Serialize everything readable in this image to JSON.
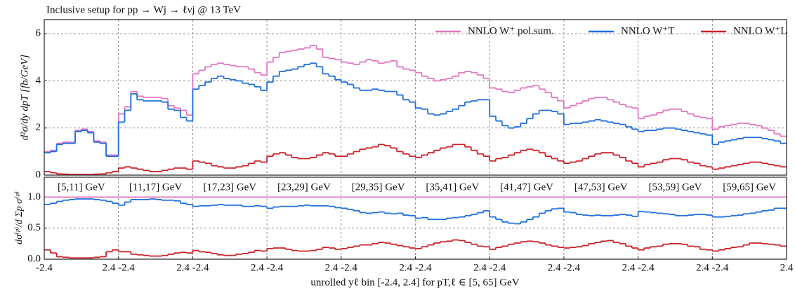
{
  "chart_data": [
    {
      "type": "step",
      "title": "Inclusive setup for pp → Wj → ℓνj @ 13 TeV",
      "ylabel": "d²σ/dy dpT [fb/GeV]",
      "ylim": [
        0,
        6.6
      ],
      "yticks": [
        0,
        2,
        4,
        6
      ],
      "xlim": [
        0,
        10
      ],
      "grid": true,
      "legend": "upper right",
      "series": [
        {
          "name": "NNLO W⁺ pol.sum.",
          "color": "#e377c2",
          "values": [
            1.0,
            1.05,
            1.35,
            1.4,
            1.4,
            1.9,
            1.95,
            1.85,
            1.45,
            1.4,
            0.85,
            0.85,
            2.6,
            2.9,
            3.55,
            3.35,
            3.3,
            3.3,
            3.3,
            3.25,
            2.95,
            2.85,
            2.75,
            2.55,
            4.3,
            4.45,
            4.6,
            4.7,
            4.75,
            4.7,
            4.65,
            4.6,
            4.6,
            4.5,
            4.35,
            4.25,
            4.8,
            5.0,
            5.2,
            5.25,
            5.3,
            5.35,
            5.4,
            5.5,
            5.35,
            5.0,
            4.95,
            4.9,
            4.8,
            4.75,
            4.7,
            4.8,
            4.9,
            4.85,
            4.75,
            4.8,
            4.85,
            4.6,
            4.5,
            4.45,
            4.35,
            4.2,
            4.1,
            4.0,
            4.05,
            4.1,
            4.2,
            4.35,
            4.4,
            4.35,
            4.25,
            4.1,
            3.7,
            3.65,
            3.55,
            3.5,
            3.6,
            3.7,
            3.75,
            3.8,
            3.65,
            3.5,
            3.3,
            3.15,
            2.85,
            2.95,
            3.05,
            3.15,
            3.25,
            3.3,
            3.3,
            3.2,
            3.1,
            3.0,
            2.9,
            2.85,
            2.4,
            2.5,
            2.55,
            2.65,
            2.75,
            2.8,
            2.8,
            2.7,
            2.6,
            2.5,
            2.45,
            2.4,
            1.95,
            2.05,
            2.1,
            2.15,
            2.2,
            2.2,
            2.15,
            2.1,
            2.0,
            1.9,
            1.75,
            1.65
          ]
        },
        {
          "name": "NNLO W⁺T",
          "color": "#1f6fdc",
          "values": [
            0.95,
            1.0,
            1.3,
            1.35,
            1.35,
            1.85,
            1.9,
            1.8,
            1.4,
            1.35,
            0.8,
            0.8,
            2.25,
            2.75,
            3.45,
            3.2,
            3.15,
            3.15,
            3.15,
            3.1,
            2.8,
            2.75,
            2.45,
            2.3,
            3.65,
            3.8,
            3.95,
            4.1,
            4.2,
            4.1,
            4.05,
            4.0,
            3.9,
            3.85,
            3.75,
            3.6,
            3.95,
            4.2,
            4.4,
            4.45,
            4.5,
            4.6,
            4.7,
            4.75,
            4.6,
            4.3,
            4.2,
            4.05,
            3.95,
            3.85,
            3.7,
            3.6,
            3.6,
            3.65,
            3.6,
            3.55,
            3.55,
            3.4,
            3.2,
            3.1,
            2.85,
            2.8,
            2.6,
            2.55,
            2.6,
            2.7,
            2.8,
            2.95,
            3.1,
            3.15,
            3.2,
            3.2,
            2.5,
            2.3,
            2.1,
            2.0,
            2.05,
            2.2,
            2.4,
            2.6,
            2.75,
            2.75,
            2.7,
            2.6,
            2.15,
            2.2,
            2.2,
            2.25,
            2.3,
            2.35,
            2.3,
            2.25,
            2.2,
            2.15,
            2.05,
            1.95,
            1.85,
            1.9,
            1.9,
            1.95,
            2.0,
            2.0,
            1.95,
            1.9,
            1.85,
            1.8,
            1.75,
            1.7,
            1.3,
            1.4,
            1.45,
            1.5,
            1.55,
            1.6,
            1.6,
            1.6,
            1.55,
            1.5,
            1.45,
            1.35
          ]
        },
        {
          "name": "NNLO W⁺L",
          "color": "#cc2229",
          "values": [
            0.15,
            0.1,
            0.05,
            0.04,
            0.03,
            0.03,
            0.03,
            0.03,
            0.04,
            0.05,
            0.1,
            0.15,
            0.3,
            0.35,
            0.3,
            0.25,
            0.2,
            0.15,
            0.15,
            0.2,
            0.25,
            0.3,
            0.3,
            0.25,
            0.6,
            0.55,
            0.5,
            0.4,
            0.35,
            0.3,
            0.3,
            0.35,
            0.4,
            0.5,
            0.6,
            0.55,
            0.8,
            0.9,
            0.95,
            0.85,
            0.75,
            0.7,
            0.7,
            0.75,
            0.85,
            0.95,
            0.9,
            0.8,
            0.8,
            0.9,
            1.0,
            1.1,
            1.15,
            1.2,
            1.3,
            1.25,
            1.15,
            1.0,
            0.9,
            0.8,
            0.75,
            0.85,
            0.95,
            1.05,
            1.15,
            1.2,
            1.3,
            1.3,
            1.2,
            1.05,
            0.9,
            0.8,
            0.6,
            0.7,
            0.75,
            0.85,
            0.95,
            1.05,
            1.1,
            1.05,
            0.95,
            0.8,
            0.7,
            0.6,
            0.5,
            0.55,
            0.6,
            0.7,
            0.8,
            0.9,
            0.95,
            0.95,
            0.85,
            0.75,
            0.6,
            0.5,
            0.35,
            0.45,
            0.5,
            0.55,
            0.65,
            0.7,
            0.7,
            0.65,
            0.55,
            0.5,
            0.4,
            0.35,
            0.25,
            0.3,
            0.35,
            0.4,
            0.45,
            0.5,
            0.55,
            0.55,
            0.5,
            0.45,
            0.4,
            0.35
          ]
        }
      ]
    },
    {
      "type": "step",
      "ylabel": "dσ⁽ᵖ⁾/d Σp σ⁽ᵖ⁾",
      "xlabel": "unrolled yℓ bin [-2.4, 2.4] for pT,ℓ ∈ [5, 65] GeV",
      "ylim": [
        0,
        1.32
      ],
      "yticks": [
        {
          "value": 0,
          "label": "0.0"
        },
        {
          "value": 0.5,
          "label": "0.5"
        },
        {
          "value": 1,
          "label": "1.0"
        }
      ],
      "xlim": [
        0,
        10
      ],
      "xticks": [
        {
          "value": 0,
          "label": "-2.4"
        },
        {
          "value": 1,
          "label": "2.4 -2.4"
        },
        {
          "value": 2,
          "label": "2.4 -2.4"
        },
        {
          "value": 3,
          "label": "2.4 -2.4"
        },
        {
          "value": 4,
          "label": "2.4 -2.4"
        },
        {
          "value": 5,
          "label": "2.4 -2.4"
        },
        {
          "value": 6,
          "label": "2.4 -2.4"
        },
        {
          "value": 7,
          "label": "2.4 -2.4"
        },
        {
          "value": 8,
          "label": "2.4 -2.4"
        },
        {
          "value": 9,
          "label": "2.4 -2.4"
        },
        {
          "value": 10,
          "label": "2.4"
        }
      ],
      "grid": true,
      "annotations": [
        "[5,11] GeV",
        "[11,17] GeV",
        "[17,23] GeV",
        "[23,29] GeV",
        "[29,35] GeV",
        "[35,41] GeV",
        "[41,47] GeV",
        "[47,53] GeV",
        "[53,59] GeV",
        "[59,65] GeV"
      ],
      "series": [
        {
          "color": "#e377c2",
          "values": [
            1,
            1,
            1,
            1,
            1,
            1,
            1,
            1,
            1,
            1,
            1,
            1,
            1,
            1,
            1,
            1,
            1,
            1,
            1,
            1,
            1,
            1,
            1,
            1,
            1,
            1,
            1,
            1,
            1,
            1,
            1,
            1,
            1,
            1,
            1,
            1,
            1,
            1,
            1,
            1,
            1,
            1,
            1,
            1,
            1,
            1,
            1,
            1,
            1,
            1,
            1,
            1,
            1,
            1,
            1,
            1,
            1,
            1,
            1,
            1,
            1,
            1,
            1,
            1,
            1,
            1,
            1,
            1,
            1,
            1,
            1,
            1,
            1,
            1,
            1,
            1,
            1,
            1,
            1,
            1,
            1,
            1,
            1,
            1,
            1,
            1,
            1,
            1,
            1,
            1,
            1,
            1,
            1,
            1,
            1,
            1,
            1,
            1,
            1,
            1,
            1,
            1,
            1,
            1,
            1,
            1,
            1,
            1,
            1,
            1,
            1,
            1,
            1,
            1,
            1,
            1,
            1,
            1,
            1,
            1
          ]
        },
        {
          "color": "#1f6fdc",
          "values": [
            0.88,
            0.9,
            0.93,
            0.95,
            0.96,
            0.97,
            0.97,
            0.97,
            0.96,
            0.95,
            0.93,
            0.9,
            0.87,
            0.92,
            0.96,
            0.96,
            0.96,
            0.97,
            0.96,
            0.95,
            0.95,
            0.94,
            0.9,
            0.88,
            0.85,
            0.86,
            0.86,
            0.87,
            0.88,
            0.87,
            0.87,
            0.87,
            0.85,
            0.85,
            0.86,
            0.85,
            0.82,
            0.84,
            0.85,
            0.85,
            0.85,
            0.86,
            0.87,
            0.86,
            0.86,
            0.86,
            0.85,
            0.83,
            0.82,
            0.8,
            0.78,
            0.75,
            0.74,
            0.75,
            0.76,
            0.74,
            0.73,
            0.74,
            0.71,
            0.7,
            0.66,
            0.67,
            0.64,
            0.64,
            0.64,
            0.66,
            0.67,
            0.68,
            0.7,
            0.72,
            0.75,
            0.78,
            0.68,
            0.64,
            0.6,
            0.58,
            0.57,
            0.6,
            0.64,
            0.68,
            0.74,
            0.78,
            0.81,
            0.82,
            0.76,
            0.75,
            0.72,
            0.71,
            0.7,
            0.71,
            0.7,
            0.7,
            0.71,
            0.72,
            0.71,
            0.69,
            0.77,
            0.76,
            0.75,
            0.74,
            0.73,
            0.72,
            0.7,
            0.7,
            0.71,
            0.72,
            0.72,
            0.71,
            0.68,
            0.68,
            0.69,
            0.7,
            0.71,
            0.73,
            0.74,
            0.76,
            0.78,
            0.79,
            0.82,
            0.82
          ]
        },
        {
          "color": "#cc2229",
          "values": [
            0.15,
            0.1,
            0.04,
            0.03,
            0.02,
            0.02,
            0.02,
            0.02,
            0.03,
            0.04,
            0.12,
            0.15,
            0.12,
            0.12,
            0.08,
            0.07,
            0.06,
            0.05,
            0.05,
            0.06,
            0.08,
            0.1,
            0.11,
            0.1,
            0.14,
            0.12,
            0.11,
            0.09,
            0.07,
            0.06,
            0.06,
            0.08,
            0.09,
            0.11,
            0.14,
            0.13,
            0.17,
            0.18,
            0.18,
            0.16,
            0.14,
            0.13,
            0.13,
            0.14,
            0.16,
            0.19,
            0.18,
            0.16,
            0.17,
            0.19,
            0.21,
            0.23,
            0.23,
            0.25,
            0.27,
            0.26,
            0.24,
            0.22,
            0.2,
            0.18,
            0.17,
            0.2,
            0.23,
            0.26,
            0.28,
            0.29,
            0.31,
            0.3,
            0.27,
            0.24,
            0.21,
            0.2,
            0.16,
            0.19,
            0.21,
            0.24,
            0.26,
            0.28,
            0.29,
            0.28,
            0.26,
            0.23,
            0.21,
            0.19,
            0.18,
            0.19,
            0.2,
            0.22,
            0.25,
            0.27,
            0.29,
            0.3,
            0.27,
            0.25,
            0.21,
            0.18,
            0.15,
            0.18,
            0.2,
            0.21,
            0.24,
            0.25,
            0.25,
            0.24,
            0.21,
            0.2,
            0.16,
            0.15,
            0.13,
            0.15,
            0.17,
            0.19,
            0.2,
            0.23,
            0.26,
            0.26,
            0.25,
            0.24,
            0.23,
            0.21
          ]
        }
      ]
    }
  ]
}
